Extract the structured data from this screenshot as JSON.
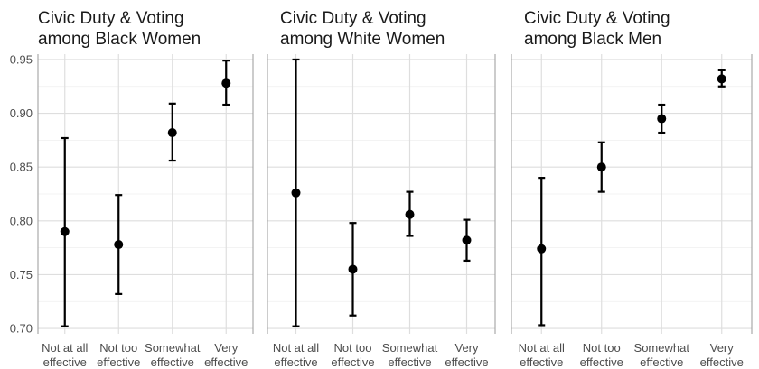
{
  "chart_data": [
    {
      "type": "scatter",
      "title_lines": [
        "Civic Duty & Voting",
        "among Black Women"
      ],
      "categories": [
        [
          "Not at all",
          "effective"
        ],
        [
          "Not too",
          "effective"
        ],
        [
          "Somewhat",
          "effective"
        ],
        [
          "Very",
          "effective"
        ]
      ],
      "ylim": [
        0.695,
        0.955
      ],
      "yticks": [
        "0.70",
        "0.75",
        "0.80",
        "0.85",
        "0.90",
        "0.95"
      ],
      "show_yticks": true,
      "grid": true,
      "points": [
        {
          "y": 0.79,
          "lo": 0.702,
          "hi": 0.877
        },
        {
          "y": 0.778,
          "lo": 0.732,
          "hi": 0.824
        },
        {
          "y": 0.882,
          "lo": 0.856,
          "hi": 0.909
        },
        {
          "y": 0.928,
          "lo": 0.908,
          "hi": 0.949
        }
      ]
    },
    {
      "type": "scatter",
      "title_lines": [
        "Civic Duty & Voting",
        "among White Women"
      ],
      "categories": [
        [
          "Not at all",
          "effective"
        ],
        [
          "Not too",
          "effective"
        ],
        [
          "Somewhat",
          "effective"
        ],
        [
          "Very",
          "effective"
        ]
      ],
      "ylim": [
        0.695,
        0.955
      ],
      "show_yticks": false,
      "grid": true,
      "points": [
        {
          "y": 0.826,
          "lo": 0.702,
          "hi": 0.95
        },
        {
          "y": 0.755,
          "lo": 0.712,
          "hi": 0.798
        },
        {
          "y": 0.806,
          "lo": 0.786,
          "hi": 0.827
        },
        {
          "y": 0.782,
          "lo": 0.763,
          "hi": 0.801
        }
      ]
    },
    {
      "type": "scatter",
      "title_lines": [
        "Civic Duty & Voting",
        "among Black Men"
      ],
      "categories": [
        [
          "Not at all",
          "effective"
        ],
        [
          "Not too",
          "effective"
        ],
        [
          "Somewhat",
          "effective"
        ],
        [
          "Very",
          "effective"
        ]
      ],
      "ylim": [
        0.695,
        0.955
      ],
      "show_yticks": false,
      "grid": true,
      "points": [
        {
          "y": 0.774,
          "lo": 0.703,
          "hi": 0.84
        },
        {
          "y": 0.85,
          "lo": 0.827,
          "hi": 0.873
        },
        {
          "y": 0.895,
          "lo": 0.882,
          "hi": 0.908
        },
        {
          "y": 0.932,
          "lo": 0.925,
          "hi": 0.94
        }
      ]
    }
  ]
}
